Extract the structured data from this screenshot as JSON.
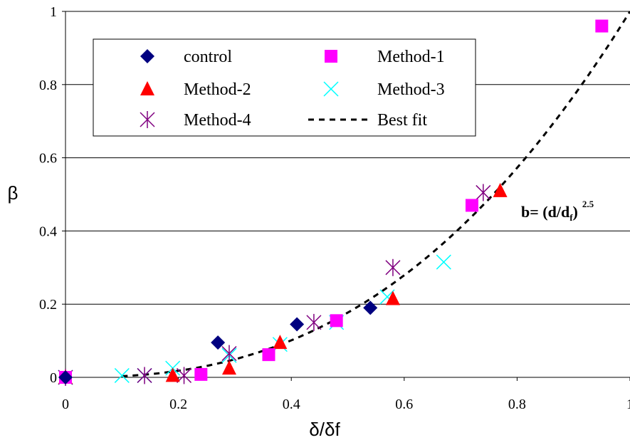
{
  "chart_data": {
    "type": "scatter",
    "title": "",
    "xlabel": "δ/δf",
    "ylabel": "β",
    "xlim": [
      0,
      1
    ],
    "ylim": [
      0,
      1
    ],
    "xticks": [
      "0",
      "0.2",
      "0.4",
      "0.6",
      "0.8",
      "1"
    ],
    "yticks": [
      "0",
      "0.2",
      "0.4",
      "0.6",
      "0.8",
      "1"
    ],
    "grid": "horizontal",
    "legend_position": "top-left",
    "series": [
      {
        "name": "control",
        "marker": "diamond",
        "color": "#000080",
        "points": [
          [
            0,
            0
          ],
          [
            0.27,
            0.095
          ],
          [
            0.41,
            0.145
          ],
          [
            0.54,
            0.19
          ]
        ]
      },
      {
        "name": "Method-1",
        "marker": "square",
        "color": "#FF00FF",
        "points": [
          [
            0,
            0
          ],
          [
            0.24,
            0.008
          ],
          [
            0.36,
            0.062
          ],
          [
            0.48,
            0.155
          ],
          [
            0.72,
            0.47
          ],
          [
            0.95,
            0.96
          ]
        ]
      },
      {
        "name": "Method-2",
        "marker": "triangle",
        "color": "#FF0000",
        "points": [
          [
            0,
            0
          ],
          [
            0.19,
            0.005
          ],
          [
            0.29,
            0.025
          ],
          [
            0.38,
            0.095
          ],
          [
            0.58,
            0.215
          ],
          [
            0.77,
            0.51
          ]
        ]
      },
      {
        "name": "Method-3",
        "marker": "x",
        "color": "#00FFFF",
        "points": [
          [
            0,
            0
          ],
          [
            0.1,
            0.005
          ],
          [
            0.14,
            0.005
          ],
          [
            0.19,
            0.025
          ],
          [
            0.29,
            0.06
          ],
          [
            0.38,
            0.09
          ],
          [
            0.48,
            0.15
          ],
          [
            0.57,
            0.22
          ],
          [
            0.67,
            0.315
          ]
        ]
      },
      {
        "name": "Method-4",
        "marker": "asterisk",
        "color": "#800080",
        "points": [
          [
            0,
            0
          ],
          [
            0.14,
            0.005
          ],
          [
            0.21,
            0.005
          ],
          [
            0.29,
            0.065
          ],
          [
            0.44,
            0.15
          ],
          [
            0.58,
            0.3
          ],
          [
            0.74,
            0.505
          ]
        ]
      },
      {
        "name": "Best fit",
        "marker": "dashed-line",
        "color": "#000000",
        "function": "y = x^2.5",
        "x_range": [
          0.1,
          1.0
        ]
      }
    ],
    "annotation": {
      "main": "b= (d/d",
      "sub": "f",
      "close": ")",
      "sup": "2.5"
    }
  }
}
